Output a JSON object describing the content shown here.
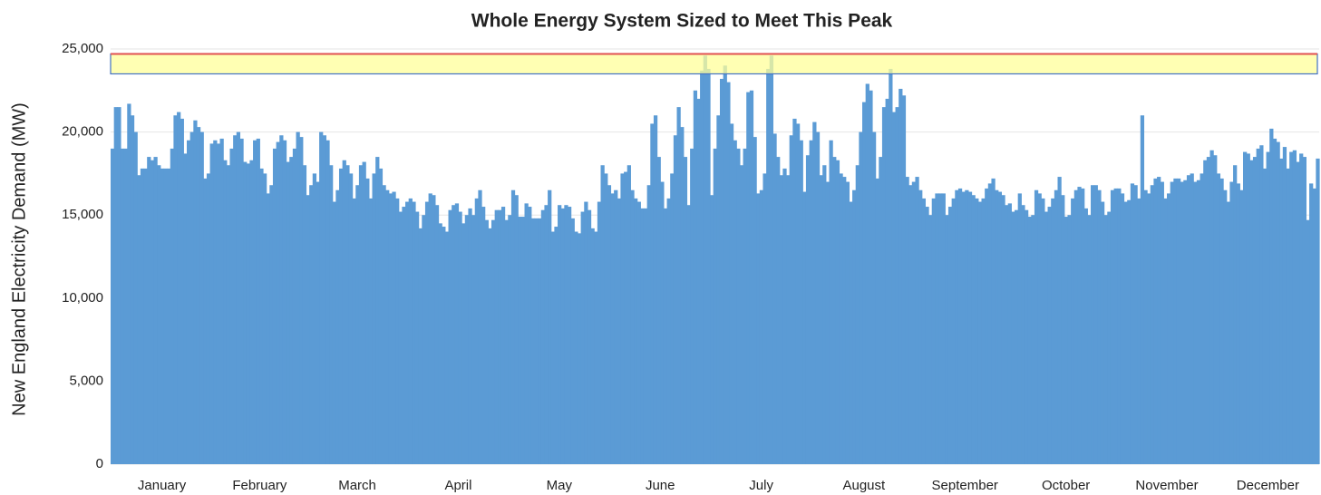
{
  "chart_data": {
    "type": "bar",
    "title": "Whole Energy System Sized to Meet This Peak",
    "y_label": "New England Electricity Demand (MW)",
    "color": "#5b9bd5",
    "grid": true,
    "ylim": [
      0,
      25000
    ],
    "yticks": [
      0,
      {
        "value": 5000,
        "label": "5,000"
      },
      {
        "value": 10000,
        "label": "10,000"
      },
      {
        "value": 15000,
        "label": "15,000"
      },
      {
        "value": 20000,
        "label": "20,000"
      },
      {
        "value": 25000,
        "label": "25,000"
      }
    ],
    "peak": 24700,
    "peak_band": [
      23500,
      24700
    ],
    "categories": [
      "January",
      "February",
      "March",
      "April",
      "May",
      "June",
      "July",
      "August",
      "September",
      "October",
      "November",
      "December"
    ],
    "values": [
      [
        19000,
        21500,
        21500,
        19000,
        19000,
        21700,
        21000,
        20000,
        17400,
        17800,
        17800,
        18500,
        18300,
        18500,
        18000,
        17800,
        17800,
        17800,
        19000,
        21000,
        21200,
        20800,
        18700,
        19500,
        20000,
        20700,
        20300,
        20000,
        17200,
        17500,
        19300
      ],
      [
        19500,
        19300,
        19600,
        18300,
        18000,
        19000,
        19800,
        20000,
        19600,
        18200,
        18100,
        18300,
        19500,
        19600,
        17800,
        17500,
        16300,
        16800,
        19000,
        19400,
        19800,
        19500,
        18200,
        18500,
        19000,
        20000,
        19700,
        18000
      ],
      [
        16200,
        16800,
        17500,
        17000,
        20000,
        19800,
        19500,
        18000,
        15800,
        16500,
        17800,
        18300,
        18000,
        17500,
        16000,
        16800,
        18000,
        18200,
        17200,
        16000,
        17500,
        18500,
        17800,
        16800,
        16500,
        16300,
        16400,
        16000,
        15200,
        15500,
        15800
      ],
      [
        16000,
        15800,
        15200,
        14200,
        15000,
        15800,
        16300,
        16200,
        15600,
        14500,
        14300,
        14000,
        15300,
        15600,
        15700,
        15200,
        14500,
        15000,
        15400,
        15000,
        16000,
        16500,
        15500,
        14700,
        14200,
        14700,
        15300,
        15300,
        15500,
        14700
      ],
      [
        15000,
        16500,
        16200,
        14900,
        14900,
        15700,
        15500,
        14800,
        14800,
        14800,
        15300,
        15600,
        16500,
        14000,
        14300,
        15600,
        15400,
        15600,
        15500,
        14800,
        14000,
        13900,
        15200,
        15800,
        15300,
        14200,
        14000,
        15800,
        18000,
        17500,
        16800
      ],
      [
        16300,
        16500,
        16000,
        17500,
        17600,
        18000,
        16500,
        16000,
        15800,
        15400,
        15400,
        16800,
        20500,
        21000,
        18500,
        17000,
        15400,
        16000,
        17500,
        19800,
        21500,
        20300,
        18500,
        15600,
        19000,
        22500,
        22000,
        23700,
        24600,
        23800
      ],
      [
        16200,
        19000,
        21000,
        23200,
        24000,
        23000,
        20500,
        19500,
        19000,
        18000,
        19000,
        22400,
        22500,
        19700,
        16300,
        16500,
        17500,
        23800,
        24600,
        19900,
        18500,
        17400,
        17800,
        17400,
        19800,
        20800,
        20500,
        19500,
        16400,
        18600,
        19500
      ],
      [
        20600,
        20000,
        17400,
        18000,
        17000,
        19500,
        18500,
        18300,
        17500,
        17300,
        17000,
        15800,
        16500,
        18000,
        20000,
        21800,
        22900,
        22500,
        20000,
        17200,
        18500,
        21500,
        22000,
        23800,
        21200,
        21500,
        22600,
        22200,
        17300,
        16800,
        17000
      ],
      [
        17300,
        16500,
        16000,
        15500,
        15000,
        16000,
        16300,
        16300,
        16300,
        15000,
        15500,
        16000,
        16500,
        16600,
        16400,
        16500,
        16400,
        16200,
        16000,
        15800,
        16000,
        16600,
        16900,
        17200,
        16500,
        16400,
        16200,
        15600,
        15700,
        15200
      ],
      [
        15300,
        16300,
        15600,
        15300,
        14900,
        15000,
        16500,
        16300,
        16000,
        15200,
        15500,
        16000,
        16500,
        17300,
        16200,
        14900,
        15000,
        16000,
        16500,
        16700,
        16600,
        15400,
        15000,
        16800,
        16800,
        16500,
        15800,
        15000,
        15200,
        16500,
        16600
      ],
      [
        16600,
        16300,
        15800,
        15900,
        16900,
        16800,
        16000,
        21000,
        16500,
        16300,
        16800,
        17200,
        17300,
        17000,
        16000,
        16300,
        17000,
        17200,
        17200,
        17000,
        17100,
        17400,
        17500,
        17000,
        17100,
        17500,
        18300,
        18500,
        18900,
        18600
      ],
      [
        17500,
        17200,
        16500,
        15800,
        17000,
        18000,
        16900,
        16500,
        18800,
        18700,
        18300,
        18500,
        19000,
        19200,
        17800,
        18800,
        20200,
        19600,
        19400,
        18400,
        19100,
        17800,
        18800,
        18900,
        18200,
        18700,
        18500,
        14700,
        16900,
        16600,
        18400
      ]
    ]
  }
}
